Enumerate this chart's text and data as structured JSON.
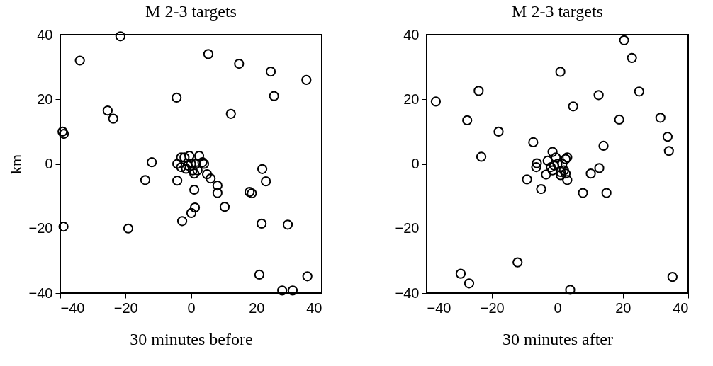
{
  "chart_data": [
    {
      "type": "scatter",
      "title": "M 2-3 targets",
      "xlabel": "30 minutes before",
      "ylabel": "km",
      "xlim": [
        -40,
        40
      ],
      "ylim": [
        -40,
        40
      ],
      "xticks": [
        -40,
        -20,
        0,
        20,
        40
      ],
      "yticks": [
        -40,
        -20,
        0,
        20,
        40
      ],
      "grid": false,
      "marker": "circle",
      "series": [
        {
          "color": "#000000",
          "x": [
            -21.6,
            -34,
            5.3,
            14.7,
            24.4,
            35.3,
            25.4,
            -4.4,
            12.2,
            -25.5,
            -23.8,
            -39.3,
            -38.9,
            -12,
            -14,
            -4.2,
            -4.2,
            4.9,
            6,
            8.1,
            8.1,
            1,
            1.2,
            0.1,
            -2.7,
            10.3,
            17.9,
            18.6,
            21.8,
            22.9,
            21.6,
            29.6,
            -39,
            -19.2,
            20.9,
            35.6,
            27.9,
            31.1,
            0,
            2.5,
            -3,
            1,
            -1,
            1.5,
            -2,
            3.5,
            4,
            -0.5,
            2,
            -3,
            -1.5,
            0.5
          ],
          "values": [
            39.5,
            32,
            34,
            31,
            28.6,
            26,
            21,
            20.5,
            15.5,
            16.5,
            14,
            10,
            9.3,
            0.5,
            -5,
            0,
            -5.2,
            -3.2,
            -4.5,
            -6.7,
            -9,
            -8,
            -13.5,
            -15.2,
            -17.7,
            -13.3,
            -8.7,
            -9.1,
            -1.6,
            -5.4,
            -18.5,
            -18.8,
            -19.4,
            -20,
            -34.3,
            -34.8,
            -39.2,
            -39.2,
            0,
            2.5,
            2,
            -3,
            -0.5,
            0,
            2,
            0.5,
            0,
            2.5,
            -2,
            -1,
            -1.5,
            -2
          ]
        }
      ]
    },
    {
      "type": "scatter",
      "title": "M 2-3 targets",
      "xlabel": "30 minutes after",
      "xlim": [
        -40,
        40
      ],
      "ylim": [
        -40,
        40
      ],
      "xticks": [
        -40,
        -20,
        0,
        20,
        40
      ],
      "yticks": [
        -40,
        -20,
        0,
        20,
        40
      ],
      "grid": false,
      "marker": "circle",
      "series": [
        {
          "color": "#000000",
          "x": [
            -37.2,
            -24.1,
            -27.6,
            -18,
            -23.3,
            0.9,
            20.4,
            22.8,
            25,
            12.6,
            4.8,
            18.9,
            31.5,
            33.7,
            34.1,
            14.1,
            -7.4,
            -6.3,
            -6.5,
            -9.3,
            -5,
            -3.5,
            -1.5,
            10.2,
            12.8,
            7.8,
            15,
            3,
            -12.2,
            -29.6,
            -27,
            3.9,
            35.2,
            0,
            3,
            -3,
            1,
            -1,
            1.5,
            -2,
            2.5,
            -0.5,
            2,
            1,
            -1.5,
            2.5
          ],
          "values": [
            19.3,
            22.6,
            13.5,
            10,
            2.2,
            28.5,
            38.3,
            32.8,
            22.4,
            21.3,
            17.8,
            13.7,
            14.3,
            8.4,
            4,
            5.6,
            6.7,
            0.2,
            -1,
            -4.8,
            -7.8,
            -3.3,
            3.7,
            -3,
            -1.3,
            -9,
            -9,
            -5,
            -30.5,
            -34,
            -37,
            -39,
            -35,
            0,
            2,
            1,
            -3.5,
            -0.5,
            0,
            -1,
            1.5,
            2,
            -2,
            -2.5,
            -2,
            -3
          ]
        }
      ]
    }
  ]
}
